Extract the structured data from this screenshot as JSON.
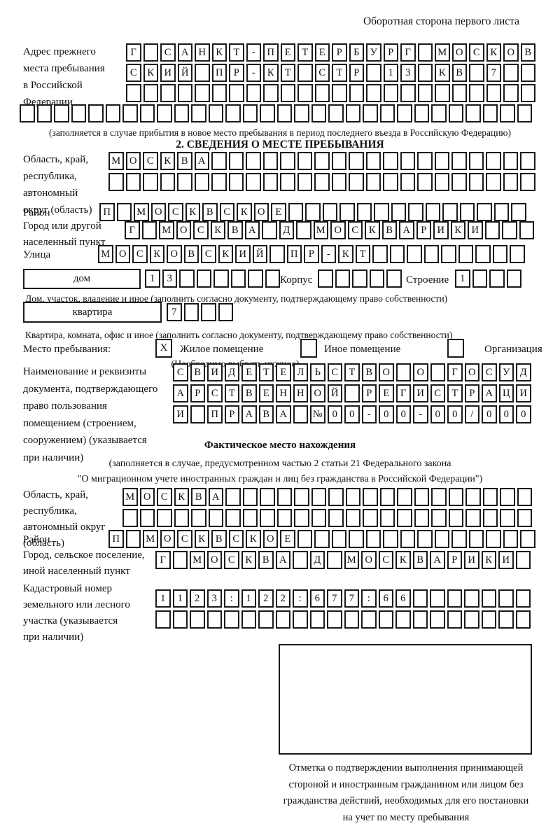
{
  "page": {
    "header_note": "Оборотная сторона первого листа"
  },
  "prev_address": {
    "label": "Адрес прежнего\nместа пребывания\nв Российской\nФедерации",
    "rows": [
      {
        "value": "Г САНКТ-ПЕТЕРБУРГ МОСКОВ",
        "length": 24
      },
      {
        "value": "СКИЙ ПР-КТ СТР 13 КВ 7",
        "length": 24
      },
      {
        "value": "",
        "length": 24
      },
      {
        "value": "",
        "length": 30
      }
    ],
    "caption": "(заполняется в случае прибытия в новое место пребывания в период последнего въезда в Российскую Федерацию)"
  },
  "section2": {
    "title": "2. СВЕДЕНИЯ О МЕСТЕ ПРЕБЫВАНИЯ",
    "oblast": {
      "label": "Область, край,\nреспублика,\nавтономный\nокруг (область)",
      "rows": [
        {
          "value": "МОСКВА",
          "length": 25
        },
        {
          "value": "",
          "length": 25
        }
      ]
    },
    "rayon": {
      "label": "Район",
      "row": {
        "value": "П МОСКВСКОЕ",
        "length": 25
      }
    },
    "gorod": {
      "label": "Город или другой\nнаселенный пункт",
      "row": {
        "value": "Г МОСКВА Д МОСКВАРИКИ",
        "length": 24
      }
    },
    "ulitsa": {
      "label": "Улица",
      "row": {
        "value": "МОСКОВСКИЙ ПР-КТ",
        "length": 25
      }
    },
    "dom": {
      "box_label": "дом",
      "cells": {
        "value": "13",
        "length": 8
      },
      "korpus_label": "Корпус",
      "korpus_cells": {
        "value": "",
        "length": 5
      },
      "stroenie_label": "Строение",
      "stroenie_cells": {
        "value": "1",
        "length": 4
      },
      "caption": "Дом, участок, владение и иное (заполнить согласно документу, подтверждающему право собственности)"
    },
    "kvartira": {
      "box_label": "квартира",
      "cells": {
        "value": "7",
        "length": 4
      },
      "caption": "Квартира, комната, офис и иное (заполнить согласно документу, подтверждающему право собственности)"
    },
    "mesto": {
      "label": "Место пребывания:",
      "options": [
        {
          "label": "Жилое помещение",
          "mark": "X"
        },
        {
          "label": "Иное помещение",
          "mark": ""
        },
        {
          "label": "Организация",
          "mark": ""
        }
      ],
      "hint": "(Необходимо выбрать нужное)"
    },
    "document": {
      "label": "Наименование и реквизиты\nдокумента, подтверждающего\nправо пользования\nпомещением (строением,\nсооружением) (указывается\nпри наличии)",
      "rows": [
        {
          "value": "СВИДЕТЕЛЬСТВО О ГОСУД",
          "length": 21
        },
        {
          "value": "АРСТВЕННОЙ РЕГИСТРАЦИ",
          "length": 21
        },
        {
          "value": "И ПРАВА №00-00-00/000",
          "length": 21
        }
      ]
    }
  },
  "actual_location": {
    "title": "Фактическое место нахождения",
    "caption": "(заполняется в случае, предусмотренном частью 2 статьи 21 Федерального закона\n\"О миграционном учете иностранных граждан и лиц без гражданства в Российской Федерации\")",
    "oblast": {
      "label": "Область, край,\nреспублика,\nавтономный округ\n(область)",
      "rows": [
        {
          "value": "МОСКВА",
          "length": 24
        },
        {
          "value": "",
          "length": 24
        }
      ]
    },
    "rayon": {
      "label": "Район",
      "row": {
        "value": "П МОСКВСКОЕ",
        "length": 25
      }
    },
    "gorod": {
      "label": "Город, сельское поселение,\nиной населенный пункт",
      "row": {
        "value": "Г МОСКВА Д МОСКВАРИКИ",
        "length": 22
      }
    },
    "kadastr": {
      "label": "Кадастровый номер\nземельного или лесного\nучастка (указывается\nпри наличии)",
      "rows": [
        {
          "value": "1123:122:677:66",
          "length": 22
        },
        {
          "value": "",
          "length": 22
        }
      ]
    },
    "stamp_caption": "Отметка о подтверждении выполнения принимающей\nстороной и иностранным гражданином или лицом без\nгражданства действий, необходимых для его постановки\nна учет по месту пребывания"
  }
}
